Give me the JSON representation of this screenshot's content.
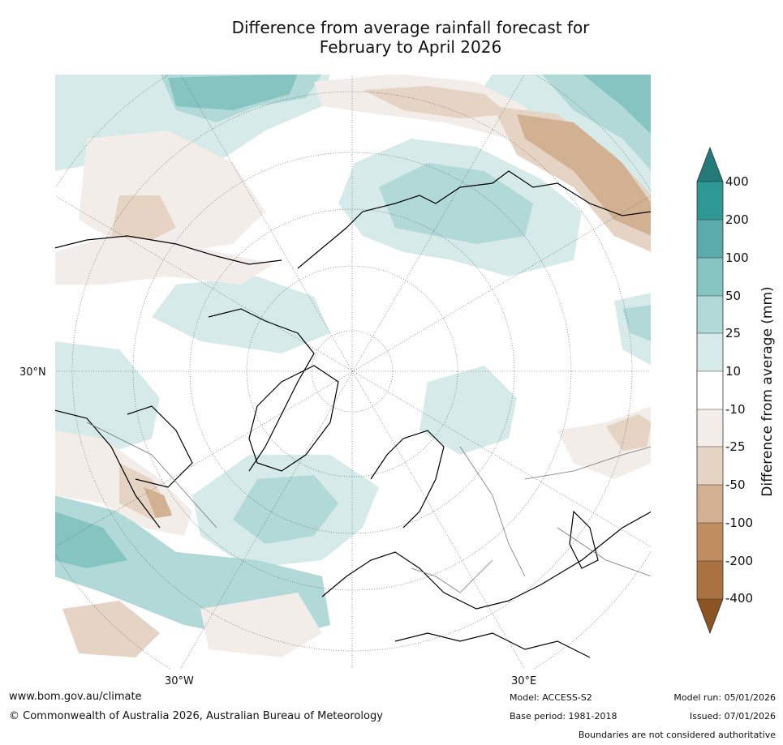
{
  "title": {
    "line1": "Difference from average rainfall forecast for",
    "line2": "February to April 2026"
  },
  "map": {
    "projection": "north-polar-stereographic",
    "labels": {
      "lat_left": "30°N",
      "lon_bottom_left": "30°W",
      "lon_bottom_right": "30°E"
    }
  },
  "colorbar": {
    "title": "Difference from average (mm)",
    "ticks": [
      "400",
      "200",
      "100",
      "50",
      "25",
      "10",
      "-10",
      "-25",
      "-50",
      "-100",
      "-200",
      "-400"
    ],
    "colors": {
      "gt400": "#237a78",
      "b200_400": "#2e9894",
      "b100_200": "#5aaba9",
      "b50_100": "#85c4c1",
      "b25_50": "#b0d9d7",
      "b10_25": "#d6ebe9",
      "neutral": "#ffffff",
      "m10_25": "#f2ede8",
      "m25_50": "#e5d3c4",
      "m50_100": "#d2b193",
      "m100_200": "#bf8d60",
      "m200_400": "#aa7240",
      "lt400": "#8b5420"
    }
  },
  "footer": {
    "website": "www.bom.gov.au/climate",
    "copyright": "© Commonwealth of Australia 2026, Australian Bureau of Meteorology",
    "model": "Model: ACCESS-S2",
    "base_period": "Base period: 1981-2018",
    "model_run": "Model run: 05/01/2026",
    "issued": "Issued: 07/01/2026",
    "disclaimer": "Boundaries are not considered authoritative"
  }
}
